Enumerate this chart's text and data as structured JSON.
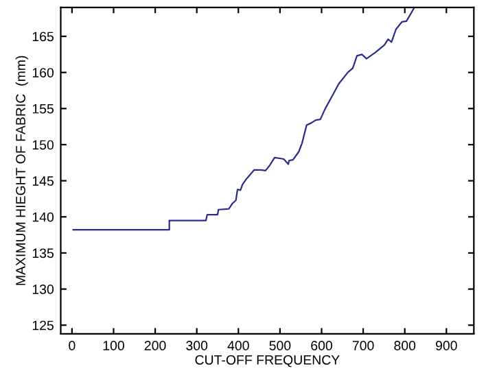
{
  "chart_data": {
    "type": "line",
    "xlabel": "CUT-OFF FREQUENCY",
    "ylabel": "MAXIMUM HIEGHT OF FABRIC  (mm)",
    "xlim": [
      -27,
      966
    ],
    "ylim": [
      123.8,
      169
    ],
    "xticks": [
      0,
      100,
      200,
      300,
      400,
      500,
      600,
      700,
      800,
      900
    ],
    "yticks": [
      125,
      130,
      135,
      140,
      145,
      150,
      155,
      160,
      165
    ],
    "grid": false,
    "legend": false,
    "marker": "none",
    "line_style": "solid",
    "series": [
      {
        "color": "#2b2b8c",
        "x": [
          3,
          234,
          234,
          322,
          325,
          350,
          352,
          377,
          385,
          394,
          398,
          405,
          410,
          420,
          438,
          455,
          465,
          475,
          487,
          500,
          509,
          520,
          522,
          531,
          545,
          553,
          564,
          575,
          586,
          597,
          608,
          625,
          641,
          663,
          675,
          685,
          697,
          708,
          730,
          751,
          760,
          768,
          779,
          793,
          804,
          823
        ],
        "values": [
          138.2,
          138.2,
          139.5,
          139.5,
          140.3,
          140.3,
          141.0,
          141.1,
          141.8,
          142.3,
          143.8,
          143.7,
          144.5,
          145.3,
          146.5,
          146.5,
          146.4,
          147.1,
          148.2,
          148.1,
          148.0,
          147.3,
          147.8,
          147.9,
          149.0,
          150.2,
          152.7,
          153.0,
          153.4,
          153.5,
          154.9,
          156.7,
          158.4,
          160.0,
          160.6,
          162.3,
          162.5,
          161.9,
          162.8,
          163.8,
          164.6,
          164.2,
          166.0,
          167.0,
          167.1,
          169.0
        ]
      }
    ]
  }
}
